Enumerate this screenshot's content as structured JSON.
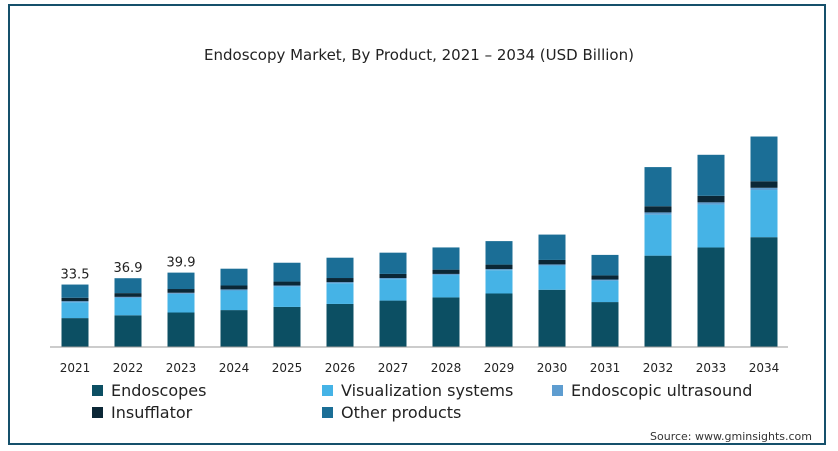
{
  "chart_data": {
    "type": "bar",
    "stacked": true,
    "title": "Endoscopy Market, By Product, 2021 – 2034 (USD Billion)",
    "categories": [
      "2021",
      "2022",
      "2023",
      "2024",
      "2025",
      "2026",
      "2027",
      "2028",
      "2029",
      "2030",
      "2031",
      "2032",
      "2033",
      "2034"
    ],
    "series": [
      {
        "name": "Endoscopes",
        "color": "#0c4f63",
        "values": [
          15.5,
          17.0,
          18.5,
          19.8,
          21.5,
          23.1,
          24.9,
          26.6,
          28.7,
          30.7,
          24.1,
          49.0,
          53.4,
          58.9
        ]
      },
      {
        "name": "Visualization systems",
        "color": "#45b3e6",
        "values": [
          8.5,
          9.3,
          10.0,
          10.5,
          10.9,
          11.1,
          11.5,
          12.0,
          12.5,
          13.0,
          11.5,
          22.0,
          23.0,
          25.3
        ]
      },
      {
        "name": "Endoscopic ultrasound",
        "color": "#5e9dd0",
        "values": [
          0.6,
          0.6,
          0.6,
          0.6,
          0.6,
          0.6,
          0.6,
          0.6,
          0.6,
          0.6,
          0.6,
          1.2,
          1.2,
          1.2
        ]
      },
      {
        "name": "Insufflator",
        "color": "#0b2736",
        "values": [
          1.8,
          2.0,
          2.0,
          2.1,
          2.1,
          2.2,
          2.2,
          2.3,
          2.4,
          2.4,
          2.2,
          3.3,
          3.5,
          3.5
        ]
      },
      {
        "name": "Other products",
        "color": "#1b6e96",
        "values": [
          7.1,
          8.0,
          8.8,
          9.0,
          10.1,
          10.9,
          11.4,
          11.9,
          12.6,
          13.6,
          11.0,
          21.0,
          22.0,
          24.0
        ]
      }
    ],
    "data_labels": [
      {
        "category": "2021",
        "text": "33.5"
      },
      {
        "category": "2022",
        "text": "36.9"
      },
      {
        "category": "2023",
        "text": "39.9"
      }
    ],
    "ylim": [
      0,
      140
    ],
    "legend": "bottom",
    "grid": false,
    "xlabel": "",
    "ylabel": ""
  },
  "source": "Source: www.gminsights.com"
}
